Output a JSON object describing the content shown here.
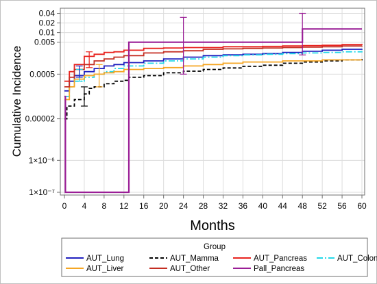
{
  "chart_data": {
    "type": "line",
    "title": "",
    "xlabel": "Months",
    "ylabel": "Cumulative Incidence",
    "x_scale": "linear",
    "y_scale": "log",
    "xlim": [
      0,
      60
    ],
    "ylim": [
      1e-07,
      0.05
    ],
    "x_ticks": [
      0,
      4,
      8,
      12,
      16,
      20,
      24,
      28,
      32,
      36,
      40,
      44,
      48,
      52,
      56,
      60
    ],
    "y_ticks": [
      {
        "value": 1e-07,
        "label": "1×10⁻⁷"
      },
      {
        "value": 1e-06,
        "label": "1×10⁻⁶"
      },
      {
        "value": 2e-05,
        "label": "0.00002"
      },
      {
        "value": 0.0005,
        "label": "0.0005"
      },
      {
        "value": 0.005,
        "label": "0.005"
      },
      {
        "value": 0.01,
        "label": "0.01"
      },
      {
        "value": 0.02,
        "label": "0.02"
      },
      {
        "value": 0.04,
        "label": "0.04"
      }
    ],
    "grid": true,
    "legend": {
      "title": "Group",
      "placement": "bottom"
    },
    "series": [
      {
        "name": "AUT_Lung",
        "color": "#1f1fbf",
        "dash": "solid",
        "points": [
          [
            0,
            0.00015
          ],
          [
            1,
            0.0003
          ],
          [
            2,
            0.00045
          ],
          [
            4,
            0.0006
          ],
          [
            6,
            0.00075
          ],
          [
            8,
            0.0009
          ],
          [
            10,
            0.001
          ],
          [
            12,
            0.00115
          ],
          [
            16,
            0.0013
          ],
          [
            20,
            0.0015
          ],
          [
            24,
            0.0017
          ],
          [
            28,
            0.0019
          ],
          [
            32,
            0.002
          ],
          [
            36,
            0.0021
          ],
          [
            40,
            0.0022
          ],
          [
            44,
            0.0024
          ],
          [
            48,
            0.0026
          ],
          [
            52,
            0.0028
          ],
          [
            56,
            0.003
          ],
          [
            60,
            0.0031
          ]
        ]
      },
      {
        "name": "AUT_Mamma",
        "color": "#000000",
        "dash": "dashed",
        "points": [
          [
            0,
            2e-05
          ],
          [
            0.5,
            5e-05
          ],
          [
            2,
            8e-05
          ],
          [
            4,
            0.00012
          ],
          [
            5,
            0.00018
          ],
          [
            6,
            0.0002
          ],
          [
            8,
            0.00025
          ],
          [
            10,
            0.0003
          ],
          [
            12,
            0.00032
          ],
          [
            13,
            0.0004
          ],
          [
            16,
            0.00045
          ],
          [
            20,
            0.00055
          ],
          [
            24,
            0.00062
          ],
          [
            28,
            0.0007
          ],
          [
            32,
            0.00078
          ],
          [
            36,
            0.00088
          ],
          [
            40,
            0.00095
          ],
          [
            44,
            0.0011
          ],
          [
            48,
            0.0012
          ],
          [
            52,
            0.0013
          ],
          [
            56,
            0.0014
          ],
          [
            60,
            0.0015
          ]
        ]
      },
      {
        "name": "AUT_Pancreas",
        "color": "#e8221e",
        "dash": "solid",
        "points": [
          [
            0,
            0.0003
          ],
          [
            1,
            0.0006
          ],
          [
            2,
            0.001
          ],
          [
            4,
            0.0018
          ],
          [
            6,
            0.0021
          ],
          [
            8,
            0.0024
          ],
          [
            10,
            0.0025
          ],
          [
            12,
            0.0028
          ],
          [
            16,
            0.0032
          ],
          [
            20,
            0.0033
          ],
          [
            24,
            0.0034
          ],
          [
            28,
            0.0034
          ],
          [
            32,
            0.0036
          ],
          [
            36,
            0.0036
          ],
          [
            40,
            0.0037
          ],
          [
            44,
            0.0038
          ],
          [
            48,
            0.0039
          ],
          [
            52,
            0.004
          ],
          [
            56,
            0.0042
          ],
          [
            60,
            0.0044
          ]
        ]
      },
      {
        "name": "AUT_Colon",
        "color": "#22d8e8",
        "dash": "dashdot",
        "points": [
          [
            0,
            0.0001
          ],
          [
            1,
            0.0002
          ],
          [
            2,
            0.0003
          ],
          [
            4,
            0.0004
          ],
          [
            6,
            0.0005
          ],
          [
            8,
            0.0006
          ],
          [
            10,
            0.00075
          ],
          [
            12,
            0.0009
          ],
          [
            16,
            0.0011
          ],
          [
            20,
            0.0013
          ],
          [
            24,
            0.0015
          ],
          [
            28,
            0.0017
          ],
          [
            32,
            0.0019
          ],
          [
            36,
            0.002
          ],
          [
            40,
            0.0021
          ],
          [
            44,
            0.0022
          ],
          [
            48,
            0.0023
          ],
          [
            52,
            0.0024
          ],
          [
            56,
            0.0025
          ],
          [
            60,
            0.0026
          ]
        ]
      },
      {
        "name": "AUT_Liver",
        "color": "#f5a623",
        "dash": "solid",
        "points": [
          [
            0,
            8e-05
          ],
          [
            1,
            0.0002
          ],
          [
            2,
            0.00035
          ],
          [
            4,
            0.00045
          ],
          [
            6,
            0.0005
          ],
          [
            8,
            0.00055
          ],
          [
            10,
            0.0006
          ],
          [
            12,
            0.0007
          ],
          [
            16,
            0.00075
          ],
          [
            20,
            0.0008
          ],
          [
            24,
            0.0009
          ],
          [
            28,
            0.001
          ],
          [
            32,
            0.0011
          ],
          [
            36,
            0.0012
          ],
          [
            40,
            0.0012
          ],
          [
            44,
            0.0013
          ],
          [
            48,
            0.0013
          ],
          [
            52,
            0.0014
          ],
          [
            56,
            0.0014
          ],
          [
            60,
            0.0014
          ]
        ]
      },
      {
        "name": "AUT_Other",
        "color": "#c42e22",
        "dash": "solid",
        "points": [
          [
            0,
            0.0002
          ],
          [
            1,
            0.0004
          ],
          [
            2,
            0.0007
          ],
          [
            4,
            0.001
          ],
          [
            6,
            0.0013
          ],
          [
            8,
            0.0015
          ],
          [
            10,
            0.0017
          ],
          [
            12,
            0.0019
          ],
          [
            16,
            0.0023
          ],
          [
            20,
            0.0025
          ],
          [
            24,
            0.0027
          ],
          [
            28,
            0.003
          ],
          [
            32,
            0.0031
          ],
          [
            36,
            0.0032
          ],
          [
            40,
            0.0033
          ],
          [
            44,
            0.0034
          ],
          [
            48,
            0.0035
          ],
          [
            52,
            0.0036
          ],
          [
            56,
            0.0038
          ],
          [
            60,
            0.0039
          ]
        ]
      },
      {
        "name": "Pall_Pancreas",
        "color": "#9a1e96",
        "dash": "solid",
        "points": [
          [
            0,
            0.0001
          ],
          [
            0.2,
            1e-07
          ],
          [
            12.5,
            1e-07
          ],
          [
            13,
            0.005
          ],
          [
            43,
            0.005
          ],
          [
            48,
            0.013
          ],
          [
            60,
            0.013
          ]
        ]
      }
    ],
    "error_bars": [
      {
        "series": "Pall_Pancreas",
        "x": 24,
        "low": 0.0005,
        "high": 0.03
      },
      {
        "series": "Pall_Pancreas",
        "x": 48,
        "low": 0.002,
        "high": 0.04
      },
      {
        "series": "AUT_Mamma",
        "x": 4,
        "low": 5e-05,
        "high": 0.0002
      },
      {
        "series": "AUT_Pancreas",
        "x": 5,
        "low": 0.0008,
        "high": 0.0025
      },
      {
        "series": "AUT_Liver",
        "x": 7,
        "low": 0.0002,
        "high": 0.001
      },
      {
        "series": "AUT_Colon",
        "x": 3,
        "low": 0.0003,
        "high": 0.0007
      },
      {
        "series": "AUT_Lung",
        "x": 3,
        "low": 0.0004,
        "high": 0.0009
      }
    ]
  }
}
